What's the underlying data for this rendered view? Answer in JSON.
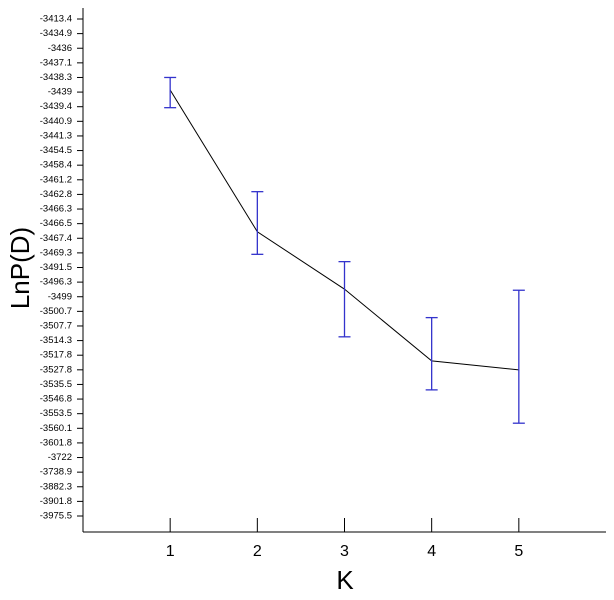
{
  "chart_data": {
    "type": "line",
    "x_label": "K",
    "y_label": "LnP(D)",
    "x": [
      1,
      2,
      3,
      4,
      5
    ],
    "values": [
      -3438.9,
      -3467.0,
      -3497.6,
      -3521.7,
      -3527.8
    ],
    "errors": [
      0.6,
      4.5,
      15,
      18,
      30
    ],
    "line_color": "#000000",
    "error_color": "#3333cc",
    "xlim": [
      0,
      6
    ],
    "xticks": [
      1,
      2,
      3,
      4,
      5
    ],
    "yticks": [
      -3413.4,
      -3434.9,
      -3436,
      -3437.1,
      -3438.3,
      -3439,
      -3439.4,
      -3440.9,
      -3441.3,
      -3454.5,
      -3458.4,
      -3461.2,
      -3462.8,
      -3466.3,
      -3466.5,
      -3467.4,
      -3469.3,
      -3491.5,
      -3496.3,
      -3499,
      -3500.7,
      -3507.7,
      -3514.3,
      -3517.8,
      -3527.8,
      -3535.5,
      -3546.8,
      -3553.5,
      -3560.1,
      -3601.8,
      -3722,
      -3738.9,
      -3882.3,
      -3901.8,
      -3975.5
    ]
  }
}
